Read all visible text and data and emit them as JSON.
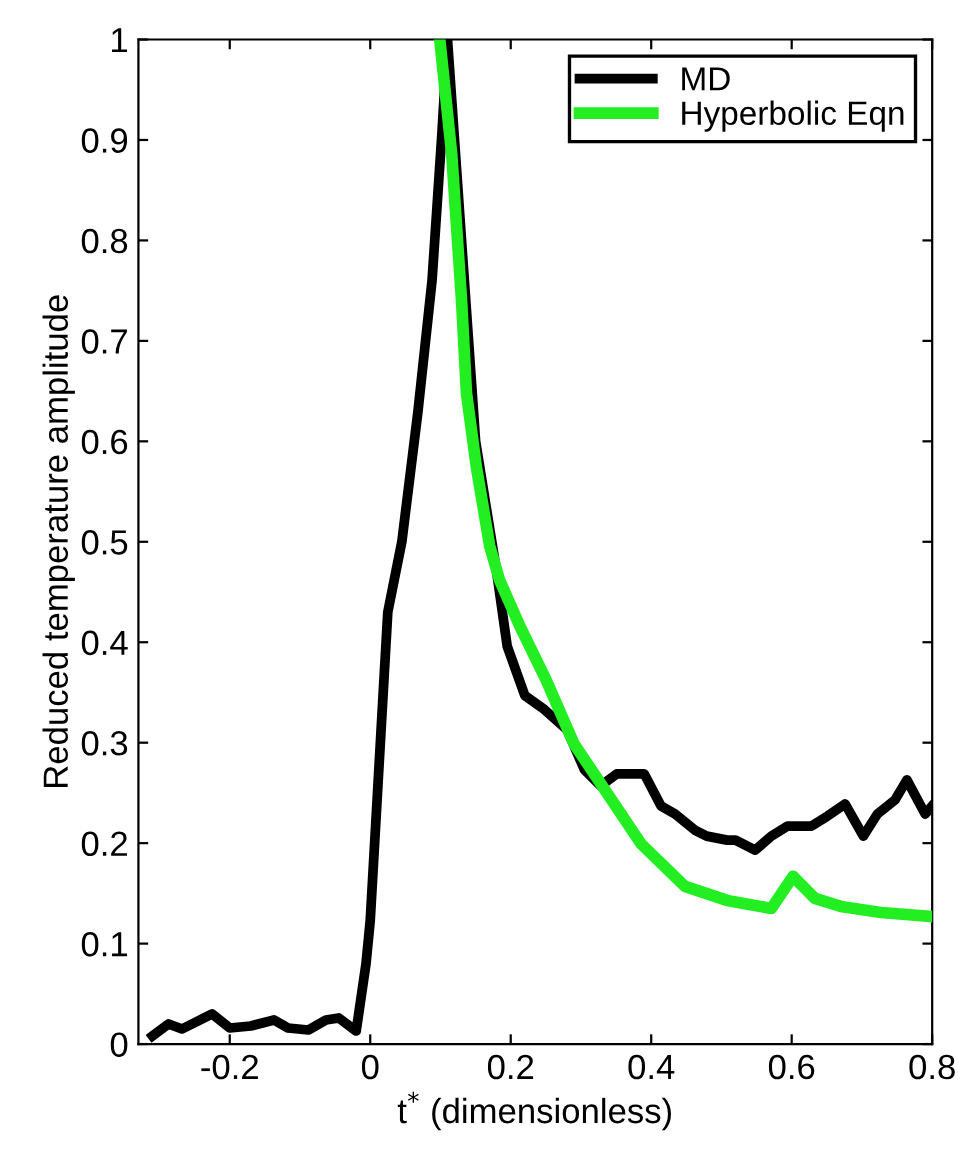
{
  "chart_data": {
    "type": "line",
    "xlabel": "t$^{*}$ (dimensionless)",
    "ylabel": "Reduced temperature amplitude",
    "xlim": [
      -0.33,
      0.8
    ],
    "ylim": [
      0,
      1
    ],
    "xticks": [
      -0.2,
      0,
      0.2,
      0.4,
      0.6,
      0.8
    ],
    "yticks": [
      0,
      0.1,
      0.2,
      0.3,
      0.4,
      0.5,
      0.6,
      0.7,
      0.8,
      0.9,
      1
    ],
    "grid": false,
    "legend": "top right",
    "line_style": "solid",
    "marker": "none",
    "series": [
      {
        "name": "MD",
        "color": "#000000",
        "x": [
          -0.31,
          -0.287,
          -0.268,
          -0.225,
          -0.2,
          -0.17,
          -0.137,
          -0.117,
          -0.088,
          -0.063,
          -0.045,
          -0.02,
          -0.006,
          0,
          0.025,
          0.045,
          0.068,
          0.088,
          0.102,
          0.11,
          0.15,
          0.18,
          0.195,
          0.22,
          0.248,
          0.28,
          0.305,
          0.328,
          0.351,
          0.39,
          0.414,
          0.434,
          0.462,
          0.479,
          0.508,
          0.52,
          0.548,
          0.571,
          0.594,
          0.628,
          0.651,
          0.676,
          0.702,
          0.722,
          0.747,
          0.764,
          0.79,
          0.8
        ],
        "values": [
          0.008,
          0.02,
          0.015,
          0.03,
          0.016,
          0.018,
          0.024,
          0.016,
          0.014,
          0.024,
          0.026,
          0.013,
          0.08,
          0.123,
          0.43,
          0.5,
          0.63,
          0.76,
          0.906,
          1.0,
          0.6,
          0.47,
          0.396,
          0.347,
          0.333,
          0.313,
          0.273,
          0.257,
          0.269,
          0.269,
          0.237,
          0.229,
          0.213,
          0.207,
          0.203,
          0.203,
          0.193,
          0.207,
          0.217,
          0.217,
          0.227,
          0.239,
          0.207,
          0.229,
          0.243,
          0.263,
          0.229,
          0.237
        ]
      },
      {
        "name": "Hyperbolic Eqn",
        "color": "#22ee22",
        "x": [
          0.099,
          0.116,
          0.13,
          0.137,
          0.151,
          0.17,
          0.184,
          0.213,
          0.25,
          0.29,
          0.338,
          0.386,
          0.448,
          0.508,
          0.571,
          0.602,
          0.633,
          0.67,
          0.727,
          0.8
        ],
        "values": [
          1.0,
          0.886,
          0.74,
          0.648,
          0.575,
          0.496,
          0.462,
          0.416,
          0.363,
          0.299,
          0.249,
          0.199,
          0.157,
          0.143,
          0.135,
          0.167,
          0.145,
          0.137,
          0.131,
          0.127
        ]
      }
    ]
  }
}
